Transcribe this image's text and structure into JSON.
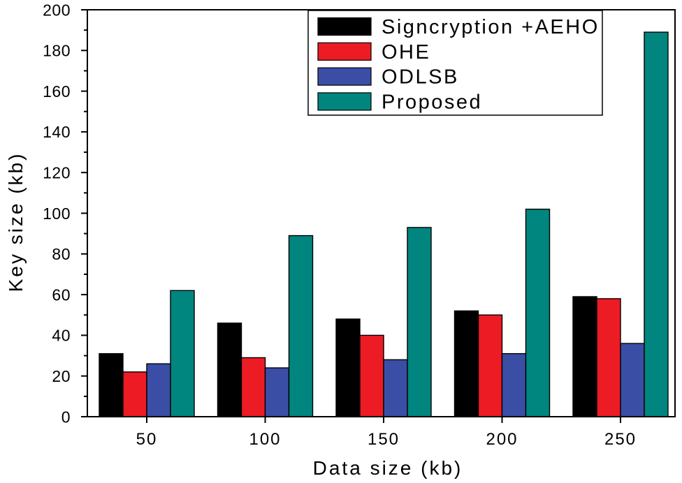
{
  "chart_data": {
    "type": "bar",
    "xlabel": "Data size (kb)",
    "ylabel": "Key size (kb)",
    "categories": [
      "50",
      "100",
      "150",
      "200",
      "250"
    ],
    "ylim": [
      0,
      200
    ],
    "yticks": [
      "0",
      "20",
      "40",
      "60",
      "80",
      "100",
      "120",
      "140",
      "160",
      "180",
      "200"
    ],
    "series": [
      {
        "name": "Signcryption +AEHO",
        "color": "#000000",
        "values": [
          31,
          46,
          48,
          52,
          59
        ]
      },
      {
        "name": "OHE",
        "color": "#ed1c24",
        "values": [
          22,
          29,
          40,
          50,
          58
        ]
      },
      {
        "name": "ODLSB",
        "color": "#3b4ea6",
        "values": [
          26,
          24,
          28,
          31,
          36
        ]
      },
      {
        "name": "Proposed",
        "color": "#00857f",
        "values": [
          62,
          89,
          93,
          102,
          189
        ]
      }
    ],
    "legend_position": "top-right",
    "grid": false
  }
}
